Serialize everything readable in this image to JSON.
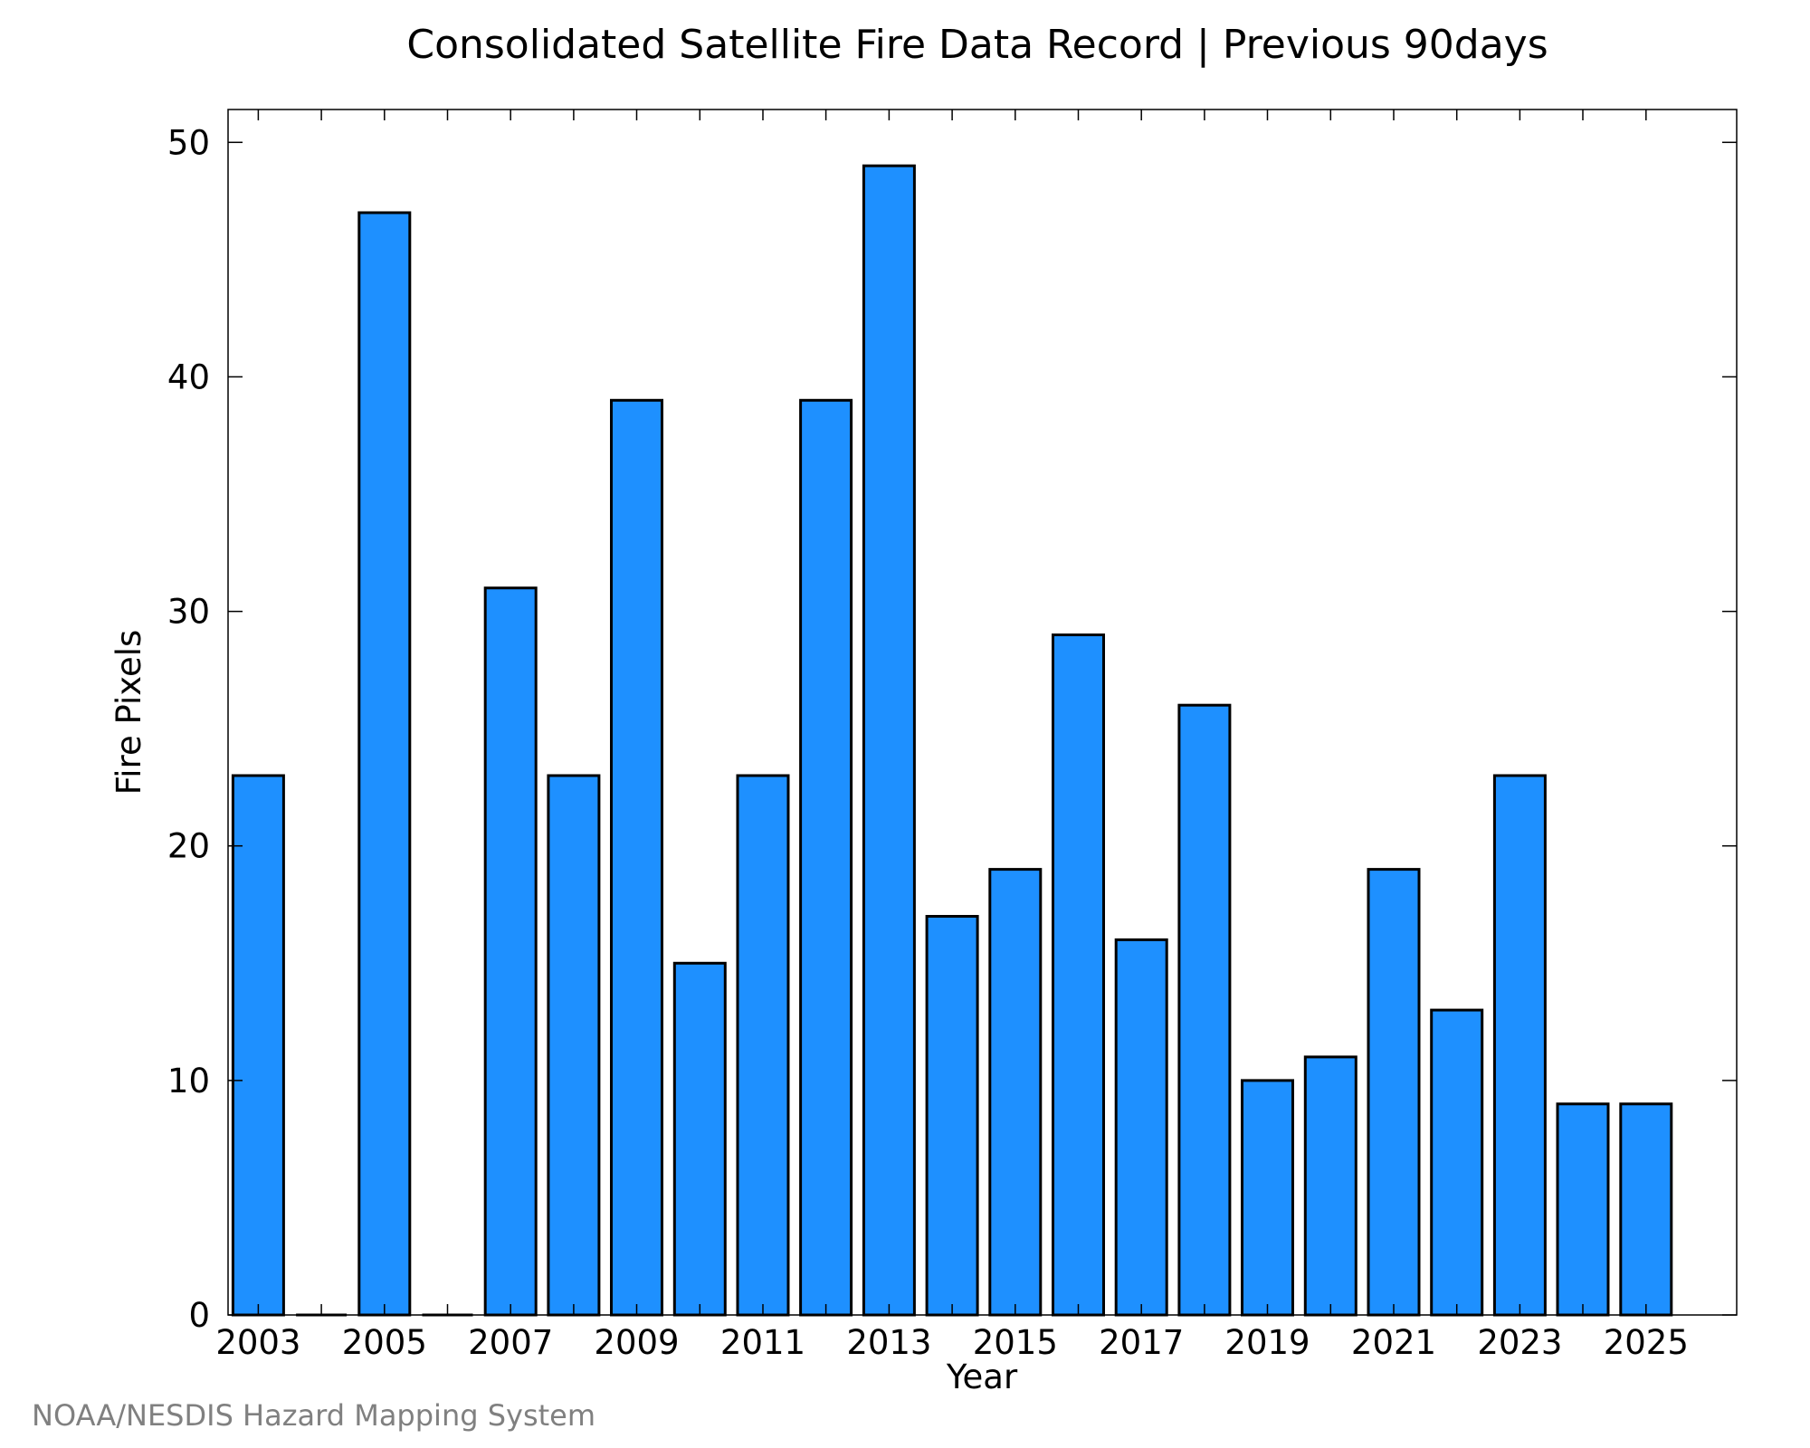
{
  "colors": {
    "bar_fill": "#1e90ff",
    "bar_stroke": "#000000",
    "axis": "#000000",
    "credit": "#808080",
    "background": "#ffffff"
  },
  "credit": "NOAA/NESDIS Hazard Mapping System",
  "chart_data": {
    "type": "bar",
    "title": "Consolidated Satellite Fire Data Record | Previous 90days",
    "xlabel": "Year",
    "ylabel": "Fire Pixels",
    "categories": [
      "2003",
      "2004",
      "2005",
      "2006",
      "2007",
      "2008",
      "2009",
      "2010",
      "2011",
      "2012",
      "2013",
      "2014",
      "2015",
      "2016",
      "2017",
      "2018",
      "2019",
      "2020",
      "2021",
      "2022",
      "2023",
      "2024",
      "2025"
    ],
    "values": [
      23,
      0,
      47,
      0,
      31,
      23,
      39,
      15,
      23,
      39,
      49,
      17,
      19,
      29,
      16,
      26,
      10,
      11,
      19,
      13,
      23,
      9,
      9
    ],
    "x_tick_labels": [
      "2003",
      "2005",
      "2007",
      "2009",
      "2011",
      "2013",
      "2015",
      "2017",
      "2019",
      "2021",
      "2023",
      "2025"
    ],
    "y_ticks": [
      0,
      10,
      20,
      30,
      40,
      50
    ],
    "ylim": [
      0,
      51.4
    ],
    "grid": false,
    "legend": "none"
  }
}
